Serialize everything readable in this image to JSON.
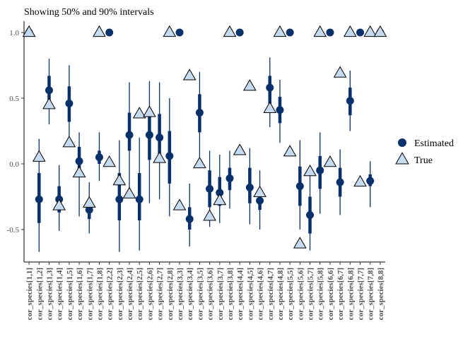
{
  "chart_data": {
    "type": "scatter",
    "title": "Showing 50% and 90% intervals",
    "xlabel": "",
    "ylabel": "",
    "ylim": [
      -0.78,
      1.08
    ],
    "yticks": [
      {
        "value": -0.5,
        "label": "-0.5"
      },
      {
        "value": 0.0,
        "label": "0.0"
      },
      {
        "value": 0.5,
        "label": "0.5"
      },
      {
        "value": 1.0,
        "label": "1.0"
      }
    ],
    "grid": false,
    "legend_position": "right",
    "legend": [
      {
        "key": "estimated",
        "label": "Estimated"
      },
      {
        "key": "true",
        "label": "True"
      }
    ],
    "colors": {
      "estimated": "#08306b",
      "true_fill": "#c6dbef",
      "true_stroke": "#000000",
      "axis": "#000000",
      "tick_label": "#4d4d4d"
    },
    "categories": [
      "cor_species[1,1]",
      "cor_species[1,2]",
      "cor_species[1,3]",
      "cor_species[1,4]",
      "cor_species[1,5]",
      "cor_species[1,6]",
      "cor_species[1,7]",
      "cor_species[1,8]",
      "cor_species[2,2]",
      "cor_species[2,3]",
      "cor_species[2,4]",
      "cor_species[2,5]",
      "cor_species[2,6]",
      "cor_species[2,7]",
      "cor_species[2,8]",
      "cor_species[3,3]",
      "cor_species[3,4]",
      "cor_species[3,5]",
      "cor_species[3,6]",
      "cor_species[3,7]",
      "cor_species[3,8]",
      "cor_species[4,4]",
      "cor_species[4,5]",
      "cor_species[4,6]",
      "cor_species[4,7]",
      "cor_species[4,8]",
      "cor_species[5,5]",
      "cor_species[5,6]",
      "cor_species[5,7]",
      "cor_species[5,8]",
      "cor_species[6,6]",
      "cor_species[6,7]",
      "cor_species[6,8]",
      "cor_species[7,7]",
      "cor_species[7,8]",
      "cor_species[8,8]"
    ],
    "series": [
      {
        "name": "Estimated",
        "values": [
          1.0,
          -0.27,
          0.56,
          -0.27,
          0.46,
          0.02,
          -0.35,
          0.05,
          1.0,
          -0.27,
          0.22,
          -0.27,
          0.22,
          0.2,
          0.06,
          1.0,
          -0.42,
          0.39,
          -0.19,
          -0.22,
          -0.11,
          1.0,
          -0.18,
          -0.28,
          0.58,
          0.41,
          1.0,
          -0.17,
          -0.39,
          -0.05,
          1.0,
          -0.14,
          0.48,
          1.0,
          -0.13,
          1.0
        ],
        "q25": [
          1.0,
          -0.45,
          0.45,
          -0.37,
          0.32,
          -0.1,
          -0.42,
          0.0,
          1.0,
          -0.43,
          0.1,
          -0.43,
          0.03,
          0.01,
          -0.15,
          1.0,
          -0.5,
          0.24,
          -0.33,
          -0.32,
          -0.2,
          1.0,
          -0.3,
          -0.35,
          0.44,
          0.31,
          1.0,
          -0.32,
          -0.53,
          -0.19,
          1.0,
          -0.25,
          0.37,
          1.0,
          -0.17,
          1.0
        ],
        "q75": [
          1.0,
          -0.07,
          0.67,
          -0.17,
          0.59,
          0.13,
          -0.27,
          0.1,
          1.0,
          -0.07,
          0.39,
          -0.07,
          0.4,
          0.38,
          0.25,
          1.0,
          -0.33,
          0.53,
          -0.05,
          -0.1,
          -0.03,
          1.0,
          -0.03,
          -0.21,
          0.67,
          0.51,
          1.0,
          -0.02,
          -0.25,
          0.06,
          1.0,
          -0.03,
          0.58,
          1.0,
          -0.08,
          1.0
        ],
        "q05": [
          1.0,
          -0.67,
          0.3,
          -0.51,
          0.17,
          -0.4,
          -0.53,
          -0.13,
          1.0,
          -0.67,
          -0.18,
          -0.66,
          -0.3,
          -0.27,
          -0.4,
          1.0,
          -0.63,
          0.05,
          -0.48,
          -0.45,
          -0.34,
          1.0,
          -0.46,
          -0.5,
          0.28,
          0.16,
          1.0,
          -0.5,
          -0.66,
          -0.38,
          1.0,
          -0.39,
          0.25,
          1.0,
          -0.33,
          1.0
        ],
        "q95": [
          1.0,
          0.19,
          0.8,
          -0.01,
          0.75,
          0.24,
          -0.14,
          0.24,
          1.0,
          0.18,
          0.62,
          0.2,
          0.63,
          0.62,
          0.5,
          1.0,
          -0.15,
          0.7,
          0.1,
          0.07,
          0.1,
          1.0,
          0.12,
          -0.05,
          0.81,
          0.64,
          1.0,
          0.18,
          -0.07,
          0.24,
          1.0,
          0.11,
          0.71,
          1.0,
          0.02,
          1.0
        ]
      },
      {
        "name": "True",
        "values": [
          1.0,
          0.05,
          0.45,
          -0.32,
          0.16,
          -0.07,
          -0.3,
          1.0,
          0.01,
          -0.13,
          -0.23,
          0.38,
          0.39,
          0.04,
          1.0,
          -0.32,
          0.67,
          0.0,
          -0.4,
          -0.28,
          1.0,
          0.1,
          0.59,
          -0.22,
          0.42,
          1.0,
          0.09,
          -0.61,
          -0.06,
          1.0,
          0.01,
          0.69,
          1.0,
          -0.14,
          1.0,
          1.0
        ]
      }
    ]
  }
}
